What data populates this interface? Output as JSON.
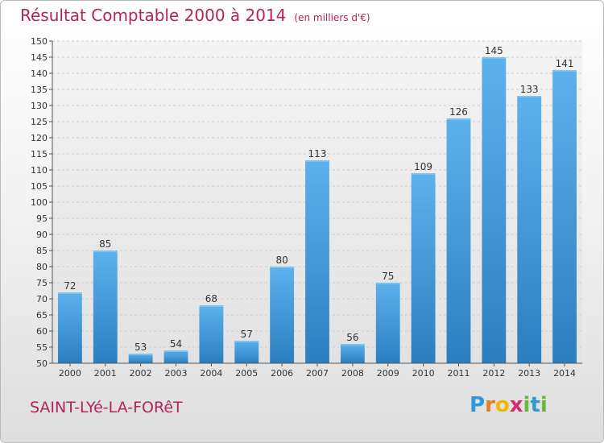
{
  "title": "Résultat Comptable 2000 à 2014",
  "subtitle": "(en milliers d'€)",
  "commune": "SAINT-LYé-LA-FORêT",
  "logo": {
    "letters": [
      "P",
      "r",
      "o",
      "x",
      "i",
      "t",
      "i"
    ],
    "colors": [
      "#2e9ad6",
      "#e87b1d",
      "#f2b705",
      "#d52b6f",
      "#69b836",
      "#2e9ad6",
      "#69b836"
    ]
  },
  "colors": {
    "bar": "#3d94d6",
    "bar_light": "#5fb0ea",
    "title": "#b3245a",
    "grid": "#cfcfcf"
  },
  "chart_data": {
    "type": "bar",
    "categories": [
      "2000",
      "2001",
      "2002",
      "2003",
      "2004",
      "2005",
      "2006",
      "2007",
      "2008",
      "2009",
      "2010",
      "2011",
      "2012",
      "2013",
      "2014"
    ],
    "values": [
      72,
      85,
      53,
      54,
      68,
      57,
      80,
      113,
      56,
      75,
      109,
      126,
      145,
      133,
      141
    ],
    "ylim": [
      50,
      150
    ],
    "yticks": [
      "50",
      "55",
      "60",
      "65",
      "70",
      "75",
      "80",
      "85",
      "90",
      "95",
      "100",
      "105",
      "110",
      "115",
      "120",
      "125",
      "130",
      "135",
      "140",
      "145",
      "150"
    ],
    "grid": true,
    "xlabel": "",
    "ylabel": ""
  }
}
